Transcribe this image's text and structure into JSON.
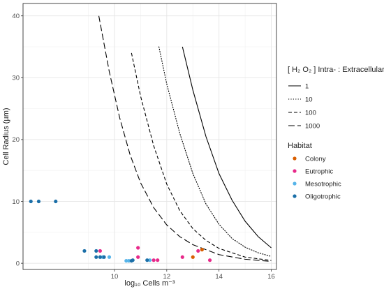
{
  "chart_data": {
    "type": "scatter",
    "xlabel": "log₁₀ Cells m⁻³",
    "ylabel": "Cell Radius (µm)",
    "xlim": [
      6.5,
      16.2
    ],
    "ylim": [
      -1,
      42
    ],
    "x_ticks": [
      10,
      12,
      14,
      16
    ],
    "y_ticks": [
      0,
      10,
      20,
      30,
      40
    ],
    "grid": true,
    "curve_legend": {
      "title": "[ H₂ O₂ ] Intra- : Extracellular",
      "entries": [
        {
          "label": "1",
          "dash": "solid"
        },
        {
          "label": "10",
          "dash": "dotted"
        },
        {
          "label": "100",
          "dash": "dashed"
        },
        {
          "label": "1000",
          "dash": "longdash"
        }
      ]
    },
    "lines": [
      {
        "name": "1",
        "dash": "solid",
        "x": [
          12.6,
          13.0,
          13.5,
          14.0,
          14.5,
          15.0,
          15.5,
          16.0
        ],
        "y": [
          35,
          28,
          20.5,
          14.5,
          10.2,
          6.8,
          4.3,
          2.5
        ]
      },
      {
        "name": "10",
        "dash": "dotted",
        "x": [
          11.7,
          12.0,
          12.5,
          13.0,
          13.5,
          14.0,
          14.5,
          15.0,
          15.5,
          16.0
        ],
        "y": [
          35,
          29,
          21,
          14.5,
          9.6,
          6.3,
          4.0,
          2.6,
          1.7,
          1.1
        ]
      },
      {
        "name": "100",
        "dash": "dashed",
        "x": [
          10.65,
          11.0,
          11.5,
          12.0,
          12.5,
          13.0,
          13.5,
          14.0,
          15.0,
          16.0
        ],
        "y": [
          34,
          27,
          19,
          12.8,
          8.5,
          5.6,
          3.7,
          2.4,
          1.0,
          0.45
        ]
      },
      {
        "name": "1000",
        "dash": "longdash",
        "x": [
          9.4,
          9.8,
          10.2,
          10.6,
          11.0,
          11.5,
          12.0,
          12.5,
          13.0,
          14.0,
          15.0,
          16.0
        ],
        "y": [
          40,
          31,
          23.5,
          17.5,
          13,
          9,
          6.2,
          4.3,
          3.0,
          1.4,
          0.65,
          0.3
        ]
      }
    ],
    "scatter_legend": {
      "title": "Habitat",
      "entries": [
        {
          "label": "Colony",
          "color": "#d95f02"
        },
        {
          "label": "Eutrophic",
          "color": "#e7298a"
        },
        {
          "label": "Mesotrophic",
          "color": "#56b4e9"
        },
        {
          "label": "Oligotrophic",
          "color": "#1b6fa8"
        }
      ]
    },
    "series": [
      {
        "name": "Colony",
        "color": "#d95f02",
        "points": [
          [
            13.0,
            1.0
          ],
          [
            13.35,
            2.2
          ]
        ]
      },
      {
        "name": "Eutrophic",
        "color": "#e7298a",
        "points": [
          [
            9.45,
            2.0
          ],
          [
            10.9,
            2.5
          ],
          [
            10.9,
            1.0
          ],
          [
            11.5,
            0.5
          ],
          [
            11.65,
            0.5
          ],
          [
            12.6,
            1.0
          ],
          [
            13.2,
            2.0
          ],
          [
            13.65,
            0.5
          ]
        ]
      },
      {
        "name": "Mesotrophic",
        "color": "#56b4e9",
        "points": [
          [
            9.55,
            1.0
          ],
          [
            9.8,
            1.0
          ],
          [
            10.45,
            0.4
          ],
          [
            10.55,
            0.4
          ],
          [
            11.35,
            0.5
          ]
        ]
      },
      {
        "name": "Oligotrophic",
        "color": "#1b6fa8",
        "points": [
          [
            6.8,
            10.0
          ],
          [
            7.1,
            10.0
          ],
          [
            7.75,
            10.0
          ],
          [
            8.85,
            2.0
          ],
          [
            9.3,
            2.0
          ],
          [
            9.3,
            1.0
          ],
          [
            9.45,
            1.0
          ],
          [
            9.6,
            1.0
          ],
          [
            10.65,
            0.4
          ],
          [
            10.7,
            0.5
          ],
          [
            11.25,
            0.5
          ]
        ]
      }
    ]
  }
}
